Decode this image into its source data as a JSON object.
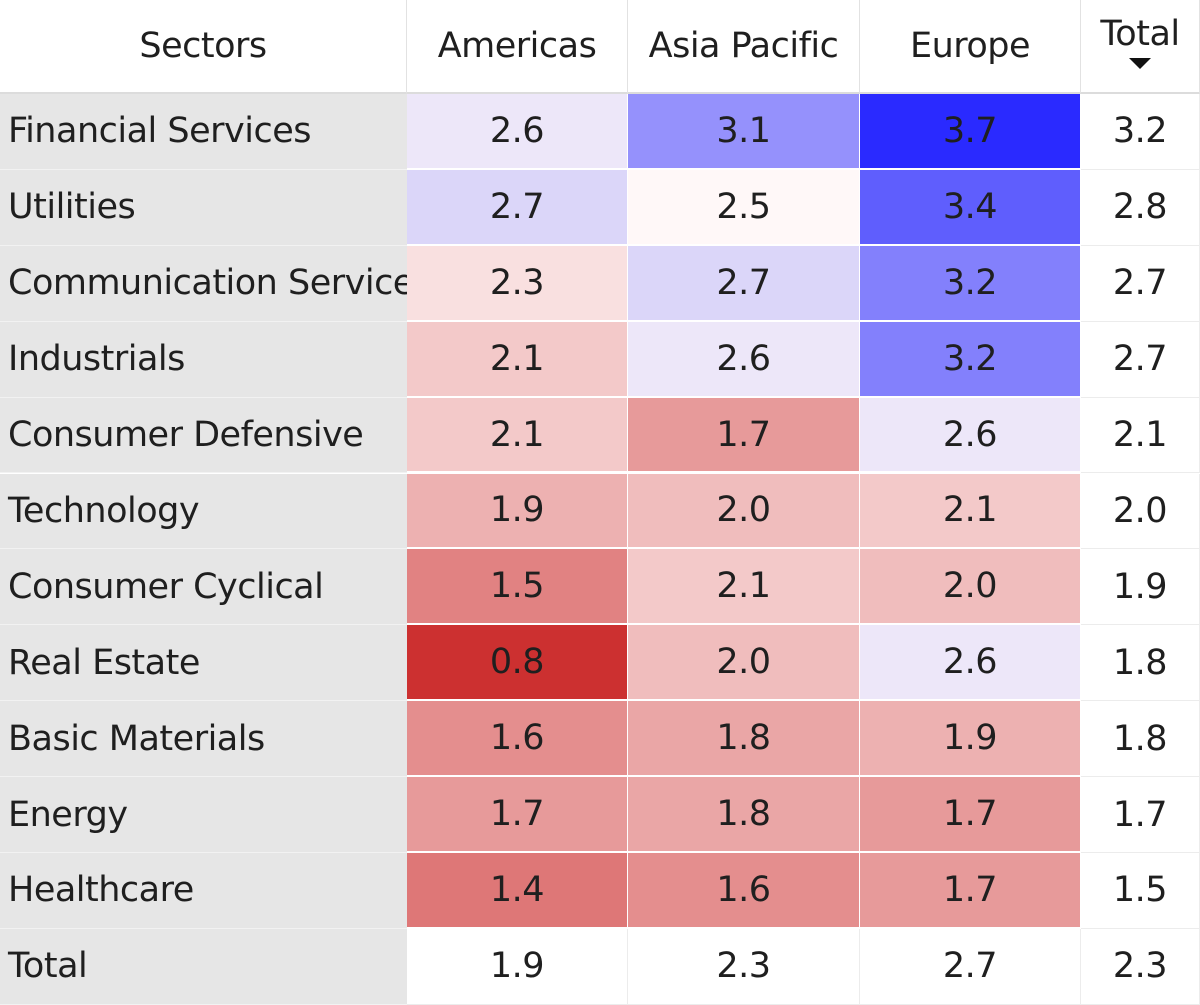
{
  "chart_data": {
    "type": "heatmap",
    "corner_header": "Sectors",
    "columns": [
      "Americas",
      "Asia Pacific",
      "Europe"
    ],
    "total_label": "Total",
    "sorted_by": "Total",
    "sort_direction": "descending",
    "rows": [
      {
        "label": "Financial Services",
        "values": [
          2.6,
          3.1,
          3.7
        ],
        "total": 3.2
      },
      {
        "label": "Utilities",
        "values": [
          2.7,
          2.5,
          3.4
        ],
        "total": 2.8
      },
      {
        "label": "Communication Services",
        "values": [
          2.3,
          2.7,
          3.2
        ],
        "total": 2.7
      },
      {
        "label": "Industrials",
        "values": [
          2.1,
          2.6,
          3.2
        ],
        "total": 2.7
      },
      {
        "label": "Consumer Defensive",
        "values": [
          2.1,
          1.7,
          2.6
        ],
        "total": 2.1
      },
      {
        "label": "Technology",
        "values": [
          1.9,
          2.0,
          2.1
        ],
        "total": 2.0
      },
      {
        "label": "Consumer Cyclical",
        "values": [
          1.5,
          2.1,
          2.0
        ],
        "total": 1.9
      },
      {
        "label": "Real Estate",
        "values": [
          0.8,
          2.0,
          2.6
        ],
        "total": 1.8
      },
      {
        "label": "Basic Materials",
        "values": [
          1.6,
          1.8,
          1.9
        ],
        "total": 1.8
      },
      {
        "label": "Energy",
        "values": [
          1.7,
          1.8,
          1.7
        ],
        "total": 1.7
      },
      {
        "label": "Healthcare",
        "values": [
          1.4,
          1.6,
          1.7
        ],
        "total": 1.5
      }
    ],
    "column_totals": [
      1.9,
      2.3,
      2.7
    ],
    "grand_total": 2.3,
    "color_scale": {
      "min_value": 0.8,
      "mid_value": 2.5,
      "max_value": 3.7,
      "min_color": "#cc3030",
      "mid_color": "#fff8f8",
      "max_color": "#2a2aff"
    }
  }
}
